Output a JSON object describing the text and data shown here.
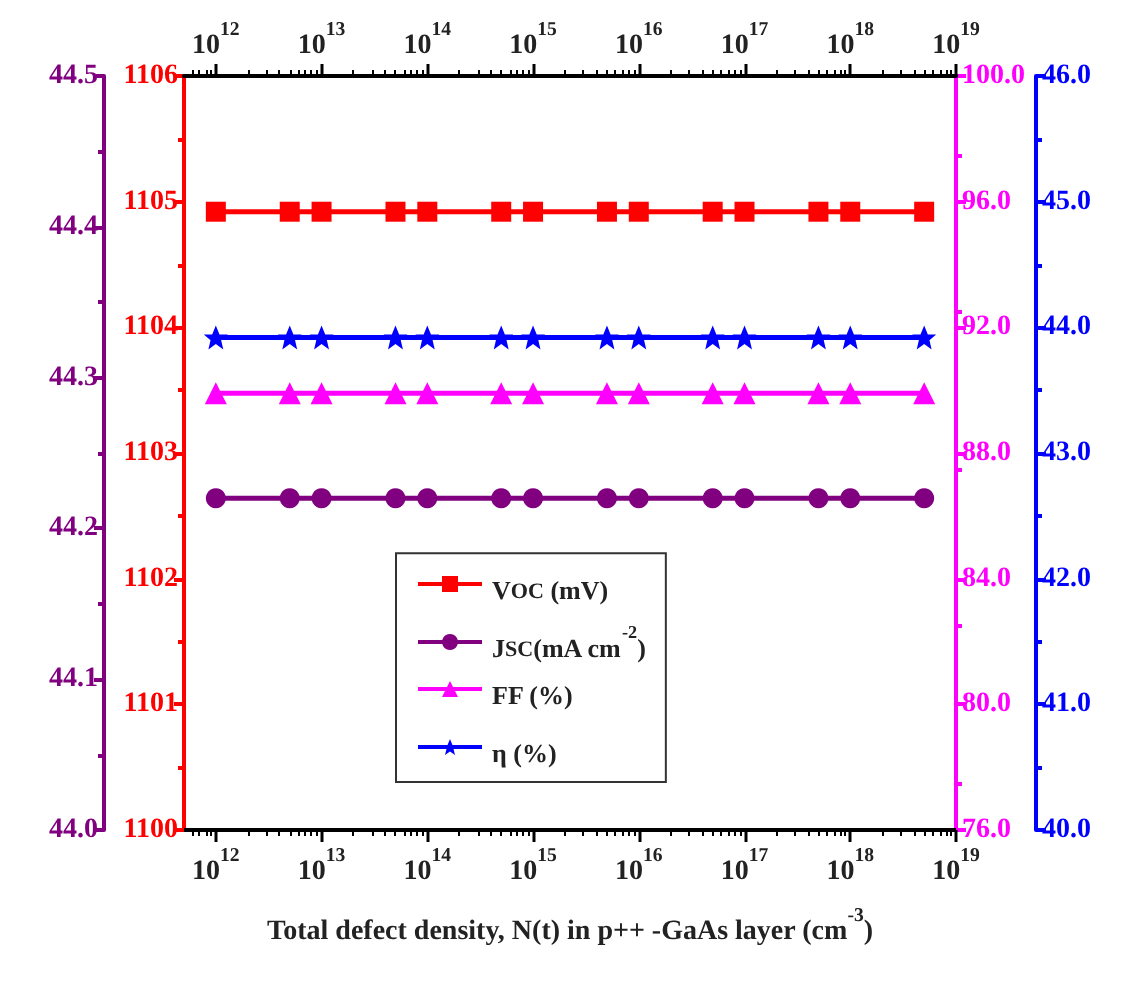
{
  "chart_data": [
    {
      "type": "line",
      "xlabel": "Total defect density, N(t) in p++ -GaAs layer (cm$^{-3}$)",
      "log": "x",
      "x": [
        1000000000000.0,
        5000000000000.0,
        10000000000000.0,
        50000000000000.0,
        100000000000000.0,
        500000000000000.0,
        1000000000000000.0,
        5000000000000000.0,
        1e+16,
        5e+16,
        1e+17,
        5e+17,
        1e+18,
        5e+18
      ],
      "xlim": [
        500000000000.0,
        1e+19
      ],
      "xticks": [
        {
          "value": 1000000000000.0,
          "label": "10$^{12}$"
        },
        {
          "value": 10000000000000.0,
          "label": "10$^{13}$"
        },
        {
          "value": 100000000000000.0,
          "label": "10$^{14}$"
        },
        {
          "value": 1000000000000000.0,
          "label": "10$^{15}$"
        },
        {
          "value": 1e+16,
          "label": "10$^{16}$"
        },
        {
          "value": 1e+17,
          "label": "10$^{17}$"
        },
        {
          "value": 1e+18,
          "label": "10$^{18}$"
        },
        {
          "value": 1e+19,
          "label": "10$^{19}$"
        }
      ],
      "ylim": [
        1100,
        1106
      ],
      "yticks": [
        1100,
        1101,
        1102,
        1103,
        1104,
        1105,
        1106
      ],
      "y2lim": [
        76,
        100
      ],
      "y2ticks": [
        {
          "value": 76,
          "label": "76.0"
        },
        {
          "value": 80,
          "label": "80.0"
        },
        {
          "value": 84,
          "label": "84.0"
        },
        {
          "value": 88,
          "label": "88.0"
        },
        {
          "value": 92,
          "label": "92.0"
        },
        {
          "value": 96,
          "label": "96.0"
        },
        {
          "value": 100,
          "label": "100.0"
        }
      ],
      "y3lim": [
        44.0,
        44.5
      ],
      "y3ticks": [
        {
          "value": 44.0,
          "label": "44.0"
        },
        44.1,
        44.2,
        44.3,
        44.4,
        44.5
      ],
      "grid": false,
      "legend": "bottom left",
      "line_style": "solid",
      "series": [
        {
          "name": "V$_{OC}$ (mV)",
          "color": "#ff0000",
          "marker": "square",
          "values": [
            1104.92,
            1104.92,
            1104.92,
            1104.92,
            1104.92,
            1104.92,
            1104.92,
            1104.92,
            1104.92,
            1104.92,
            1104.92,
            1104.92,
            1104.92,
            1104.92
          ]
        },
        {
          "name": "J$_{SC}$(mA cm$^{-2}$)",
          "color": "#800080",
          "axis": "y3",
          "marker": "circle",
          "values": [
            44.22,
            44.22,
            44.22,
            44.22,
            44.22,
            44.22,
            44.22,
            44.22,
            44.22,
            44.22,
            44.22,
            44.22,
            44.22,
            44.22
          ]
        },
        {
          "name": "FF (%)",
          "color": "#ff00ff",
          "axis": "y2",
          "marker": "triangle",
          "values": [
            89.9,
            89.9,
            89.9,
            89.9,
            89.9,
            89.9,
            89.9,
            89.9,
            89.9,
            89.9,
            89.9,
            89.9,
            89.9,
            89.9
          ]
        }
      ]
    },
    {
      "type": "line",
      "log": "x",
      "x": [
        1000000000000.0,
        5000000000000.0,
        10000000000000.0,
        50000000000000.0,
        100000000000000.0,
        500000000000000.0,
        1000000000000000.0,
        5000000000000000.0,
        1e+16,
        5e+16,
        1e+17,
        5e+17,
        1e+18,
        5e+18
      ],
      "xlim": [
        500000000000.0,
        1e+19
      ],
      "xticks": [
        {
          "value": 1000000000000.0,
          "label": "10$^{12}$"
        },
        {
          "value": 10000000000000.0,
          "label": "10$^{13}$"
        },
        {
          "value": 100000000000000.0,
          "label": "10$^{14}$"
        },
        {
          "value": 1000000000000000.0,
          "label": "10$^{15}$"
        },
        {
          "value": 1e+16,
          "label": "10$^{16}$"
        },
        {
          "value": 1e+17,
          "label": "10$^{17}$"
        },
        {
          "value": 1e+18,
          "label": "10$^{18}$"
        },
        {
          "value": 1e+19,
          "label": "10$^{19}$"
        }
      ],
      "ylim": [
        40,
        46
      ],
      "yticks": [
        {
          "value": 40,
          "label": "40.0"
        },
        {
          "value": 41,
          "label": "41.0"
        },
        {
          "value": 42,
          "label": "42.0"
        },
        {
          "value": 43,
          "label": "43.0"
        },
        {
          "value": 44,
          "label": "44.0"
        },
        {
          "value": 45,
          "label": "45.0"
        },
        {
          "value": 46,
          "label": "46.0"
        }
      ],
      "grid": false,
      "legend": "bottom left",
      "line_style": "solid",
      "series": [
        {
          "name": "η (%)",
          "color": "#0000ff",
          "marker": "star",
          "values": [
            43.92,
            43.92,
            43.92,
            43.92,
            43.92,
            43.92,
            43.92,
            43.92,
            43.92,
            43.92,
            43.92,
            43.92,
            43.92,
            43.92
          ]
        }
      ]
    }
  ]
}
